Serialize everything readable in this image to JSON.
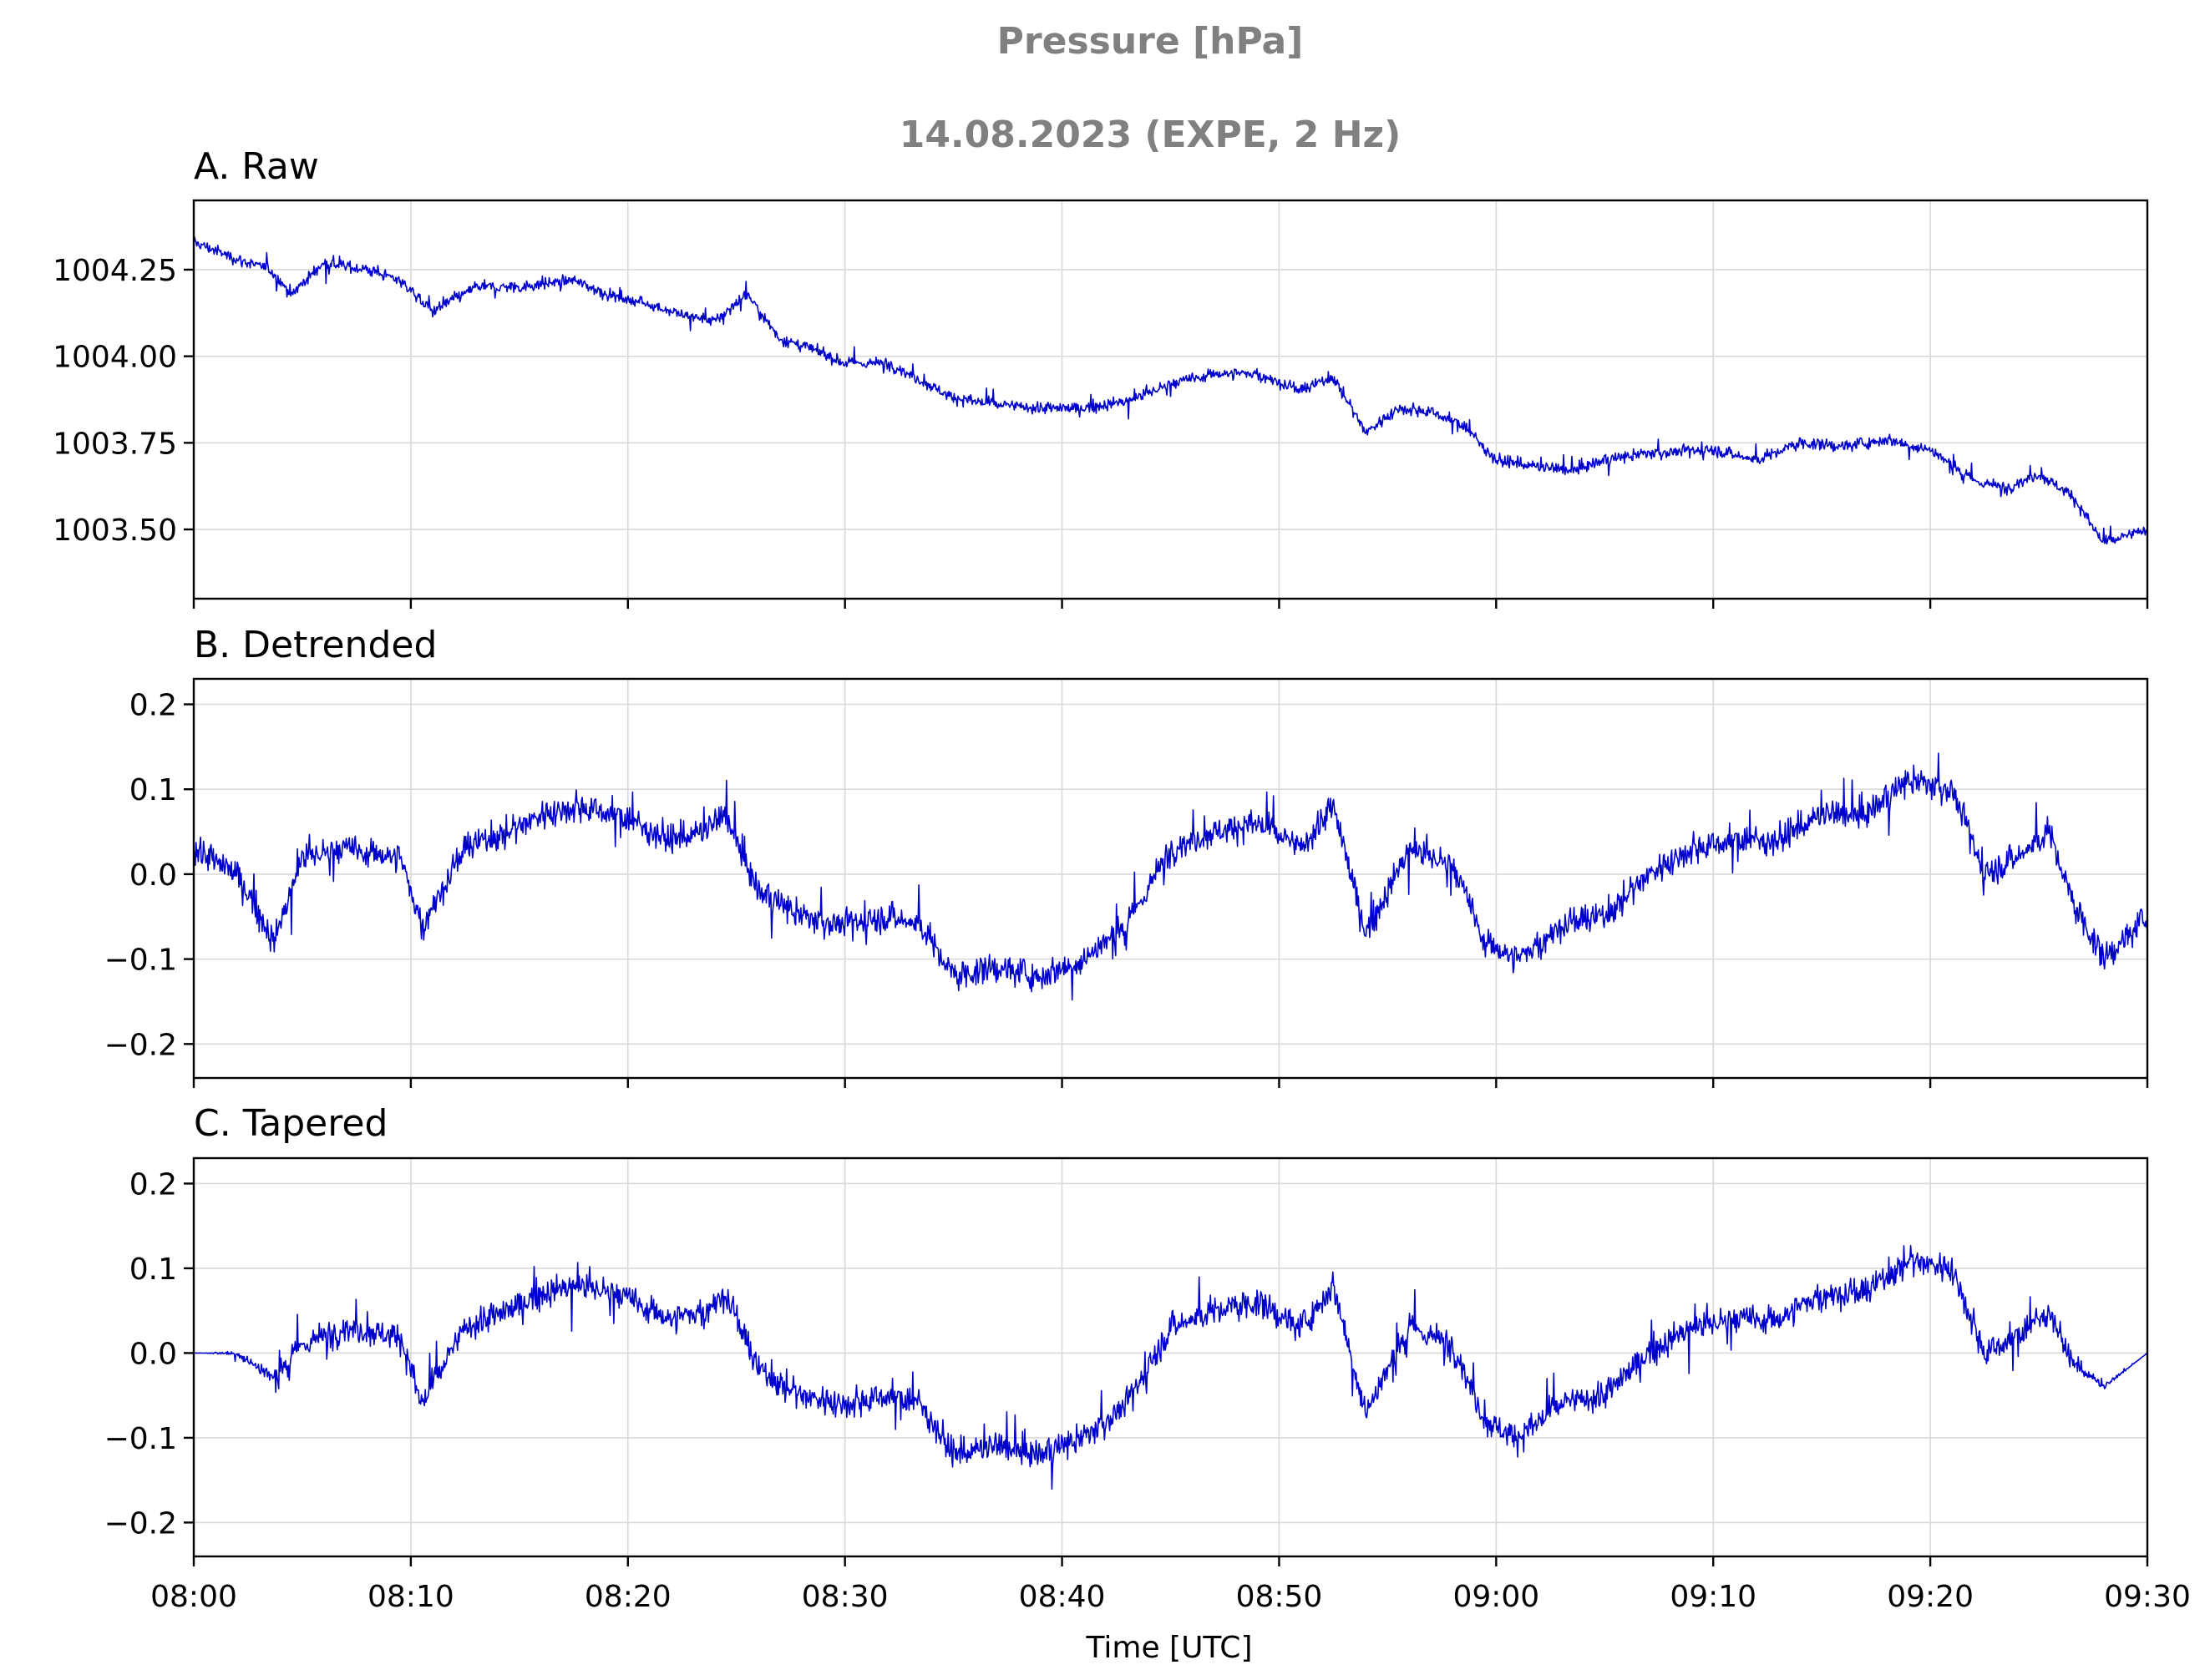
{
  "figure": {
    "title_line1": "Pressure [hPa]",
    "title_line2": "14.08.2023 (EXPE, 2 Hz)",
    "xlabel": "Time [UTC]",
    "xticks": [
      "08:00",
      "08:10",
      "08:20",
      "08:30",
      "08:40",
      "08:50",
      "09:00",
      "09:10",
      "09:20",
      "09:30"
    ],
    "line_color": "#0000cc"
  },
  "chart_data": [
    {
      "type": "line",
      "title": "A. Raw",
      "xlabel": "",
      "ylabel": "",
      "xlim": [
        "08:00",
        "09:30"
      ],
      "ylim": [
        1003.3,
        1004.45
      ],
      "yticks": [
        1003.5,
        1003.75,
        1004.0,
        1004.25
      ],
      "ytick_labels": [
        "1003.50",
        "1003.75",
        "1004.00",
        "1004.25"
      ],
      "grid": true,
      "noise": 0.03,
      "x_minutes": [
        0,
        2,
        3.5,
        4.5,
        6,
        8,
        9.5,
        11,
        13,
        15,
        17.5,
        19,
        21,
        22.5,
        24,
        25.5,
        27,
        28.5,
        30,
        32,
        33.5,
        35,
        37,
        39,
        41,
        43,
        45,
        47,
        49,
        51,
        52.5,
        54,
        55.5,
        57,
        58.5,
        60,
        62,
        63.5,
        65,
        67,
        70,
        72,
        74,
        76,
        78,
        80,
        82,
        83.5,
        85,
        86.5,
        88,
        90
      ],
      "y": [
        1004.33,
        1004.28,
        1004.25,
        1004.18,
        1004.27,
        1004.25,
        1004.22,
        1004.13,
        1004.2,
        1004.2,
        1004.22,
        1004.18,
        1004.15,
        1004.12,
        1004.1,
        1004.18,
        1004.05,
        1004.02,
        1003.98,
        1003.98,
        1003.93,
        1003.88,
        1003.86,
        1003.85,
        1003.85,
        1003.87,
        1003.92,
        1003.95,
        1003.95,
        1003.9,
        1003.94,
        1003.78,
        1003.85,
        1003.84,
        1003.8,
        1003.7,
        1003.68,
        1003.67,
        1003.7,
        1003.72,
        1003.73,
        1003.7,
        1003.75,
        1003.74,
        1003.76,
        1003.73,
        1003.64,
        1003.62,
        1003.66,
        1003.6,
        1003.46,
        1003.5
      ]
    },
    {
      "type": "line",
      "title": "B. Detrended",
      "xlabel": "",
      "ylabel": "",
      "xlim": [
        "08:00",
        "09:30"
      ],
      "ylim": [
        -0.24,
        0.23
      ],
      "yticks": [
        -0.2,
        -0.1,
        0.0,
        0.1,
        0.2
      ],
      "ytick_labels": [
        "−0.2",
        "−0.1",
        "0.0",
        "0.1",
        "0.2"
      ],
      "grid": true,
      "noise": 0.03,
      "x_minutes": [
        0,
        2,
        3.7,
        5,
        7,
        9.5,
        10.5,
        12.5,
        14.5,
        16,
        17.7,
        19.5,
        22,
        23.5,
        24.5,
        26,
        28,
        30,
        32,
        33.5,
        35,
        37,
        39,
        41,
        43,
        45,
        47,
        49,
        51,
        52.5,
        54,
        56,
        58,
        59.5,
        61,
        63,
        65,
        67,
        69,
        71,
        73,
        75,
        77,
        79,
        81,
        82.5,
        84,
        85.5,
        86.5,
        88,
        90
      ],
      "y": [
        0.03,
        0.0,
        -0.08,
        0.02,
        0.03,
        0.02,
        -0.06,
        0.03,
        0.05,
        0.07,
        0.08,
        0.07,
        0.04,
        0.05,
        0.07,
        -0.02,
        -0.05,
        -0.06,
        -0.05,
        -0.06,
        -0.12,
        -0.11,
        -0.12,
        -0.1,
        -0.06,
        0.03,
        0.05,
        0.06,
        0.03,
        0.08,
        -0.07,
        0.03,
        0.01,
        -0.08,
        -0.1,
        -0.06,
        -0.05,
        0.0,
        0.03,
        0.04,
        0.04,
        0.07,
        0.07,
        0.11,
        0.1,
        0.0,
        0.02,
        0.05,
        -0.03,
        -0.1,
        -0.05
      ]
    },
    {
      "type": "line",
      "title": "C. Tapered",
      "xlabel": "Time [UTC]",
      "ylabel": "",
      "xlim": [
        "08:00",
        "09:30"
      ],
      "ylim": [
        -0.24,
        0.23
      ],
      "yticks": [
        -0.2,
        -0.1,
        0.0,
        0.1,
        0.2
      ],
      "ytick_labels": [
        "−0.2",
        "−0.1",
        "0.0",
        "0.1",
        "0.2"
      ],
      "grid": true,
      "noise": 0.03,
      "x_minutes": [
        0,
        2,
        3.7,
        5,
        7,
        9.5,
        10.5,
        12.5,
        14.5,
        16,
        17.7,
        19.5,
        22,
        23.5,
        24.5,
        26,
        28,
        30,
        32,
        33.5,
        35,
        37,
        39,
        41,
        43,
        45,
        47,
        49,
        51,
        52.5,
        54,
        56,
        58,
        59.5,
        61,
        63,
        65,
        67,
        69,
        71,
        73,
        75,
        77,
        79,
        81,
        82.5,
        84,
        85.5,
        86.5,
        88,
        90
      ],
      "y": [
        0.0,
        0.0,
        -0.03,
        0.01,
        0.03,
        0.02,
        -0.06,
        0.03,
        0.05,
        0.07,
        0.08,
        0.07,
        0.04,
        0.05,
        0.07,
        -0.02,
        -0.05,
        -0.06,
        -0.05,
        -0.06,
        -0.12,
        -0.11,
        -0.12,
        -0.1,
        -0.06,
        0.03,
        0.05,
        0.06,
        0.03,
        0.08,
        -0.07,
        0.03,
        0.01,
        -0.08,
        -0.1,
        -0.06,
        -0.05,
        0.0,
        0.03,
        0.04,
        0.04,
        0.07,
        0.07,
        0.11,
        0.1,
        0.0,
        0.02,
        0.05,
        -0.01,
        -0.04,
        0.0
      ],
      "taper_minutes": 6
    }
  ]
}
